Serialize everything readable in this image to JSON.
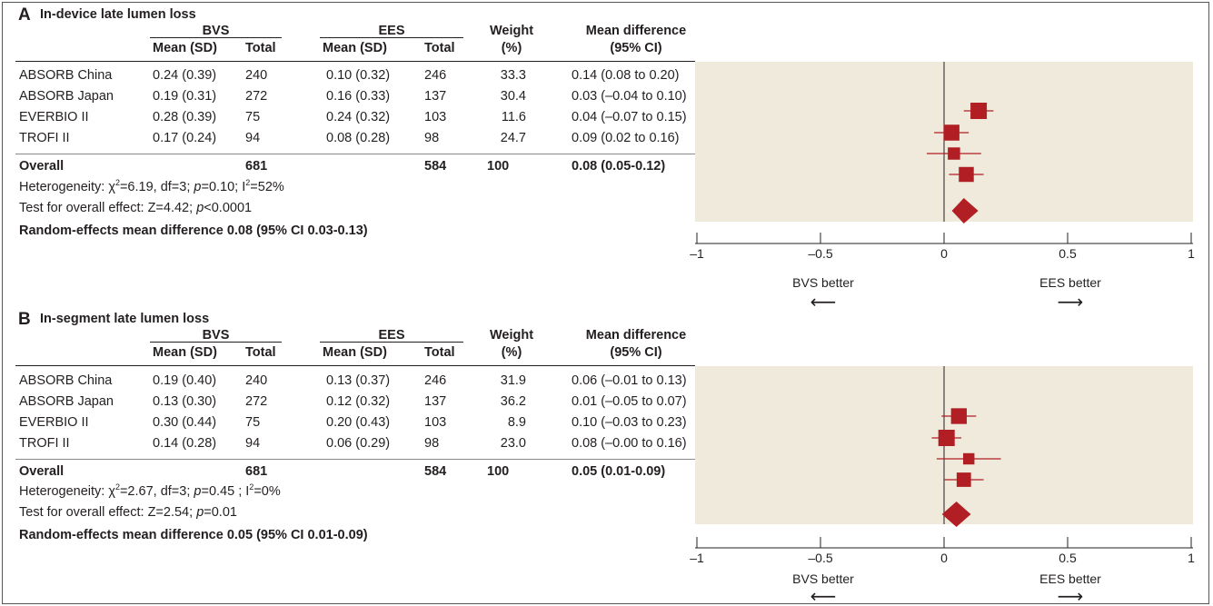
{
  "colors": {
    "plot_bg": "#efeadb",
    "marker": "#b11f24",
    "ink": "#231f20"
  },
  "columns": {
    "group1": "BVS",
    "group2": "EES",
    "mean_sd": "Mean (SD)",
    "total": "Total",
    "weight_l1": "Weight",
    "weight_l2": "(%)",
    "md_l1": "Mean difference",
    "md_l2": "(95% CI)"
  },
  "axis": {
    "ticks": [
      "–1",
      "–0.5",
      "0",
      "0.5",
      "1"
    ],
    "left_label": "BVS better",
    "right_label": "EES better",
    "left_arrow": "⟵",
    "right_arrow": "⟶"
  },
  "panels": [
    {
      "letter": "A",
      "title": "In-device late lumen loss",
      "rows": [
        {
          "study": "ABSORB China",
          "bvs_mean": "0.24 (0.39)",
          "bvs_total": "240",
          "ees_mean": "0.10 (0.32)",
          "ees_total": "246",
          "weight": "33.3",
          "md": "0.14 (0.08 to 0.20)"
        },
        {
          "study": "ABSORB Japan",
          "bvs_mean": "0.19 (0.31)",
          "bvs_total": "272",
          "ees_mean": "0.16 (0.33)",
          "ees_total": "137",
          "weight": "30.4",
          "md": "0.03 (–0.04 to 0.10)"
        },
        {
          "study": "EVERBIO II",
          "bvs_mean": "0.28 (0.39)",
          "bvs_total": "75",
          "ees_mean": "0.24 (0.32)",
          "ees_total": "103",
          "weight": "11.6",
          "md": "0.04 (–0.07 to 0.15)"
        },
        {
          "study": "TROFI II",
          "bvs_mean": "0.17 (0.24)",
          "bvs_total": "94",
          "ees_mean": "0.08 (0.28)",
          "ees_total": "98",
          "weight": "24.7",
          "md": "0.09 (0.02 to 0.16)"
        }
      ],
      "overall": {
        "label": "Overall",
        "bvs_total": "681",
        "ees_total": "584",
        "weight": "100",
        "md": "0.08 (0.05-0.12)"
      },
      "heterogeneity": {
        "prefix": "Heterogeneity: χ",
        "sup": "2",
        "mid": "=6.19, df=3; ",
        "p": "p",
        "p_value": "=0.10; I",
        "i2": "=52%"
      },
      "overall_effect": {
        "prefix": "Test for overall effect: Z=4.42; ",
        "p": "p",
        "p_value": "<0.0001"
      },
      "random_effects": "Random-effects mean difference 0.08 (95% CI 0.03-0.13)"
    },
    {
      "letter": "B",
      "title": "In-segment late lumen loss",
      "rows": [
        {
          "study": "ABSORB China",
          "bvs_mean": "0.19 (0.40)",
          "bvs_total": "240",
          "ees_mean": "0.13 (0.37)",
          "ees_total": "246",
          "weight": "31.9",
          "md": "0.06 (–0.01 to 0.13)"
        },
        {
          "study": "ABSORB Japan",
          "bvs_mean": "0.13 (0.30)",
          "bvs_total": "272",
          "ees_mean": "0.12 (0.32)",
          "ees_total": "137",
          "weight": "36.2",
          "md": "0.01 (–0.05 to 0.07)"
        },
        {
          "study": "EVERBIO II",
          "bvs_mean": "0.30 (0.44)",
          "bvs_total": "75",
          "ees_mean": "0.20 (0.43)",
          "ees_total": "103",
          "weight": "8.9",
          "md": "0.10 (–0.03 to 0.23)"
        },
        {
          "study": "TROFI II",
          "bvs_mean": "0.14 (0.28)",
          "bvs_total": "94",
          "ees_mean": "0.06 (0.29)",
          "ees_total": "98",
          "weight": "23.0",
          "md": "0.08 (–0.00 to 0.16)"
        }
      ],
      "overall": {
        "label": "Overall",
        "bvs_total": "681",
        "ees_total": "584",
        "weight": "100",
        "md": "0.05 (0.01-0.09)"
      },
      "heterogeneity": {
        "prefix": "Heterogeneity: χ",
        "sup": "2",
        "mid": "=2.67, df=3; ",
        "p": "p",
        "p_value": "=0.45 ; I",
        "i2": "=0%"
      },
      "overall_effect": {
        "prefix": "Test for overall effect: Z=2.54; ",
        "p": "p",
        "p_value": "=0.01"
      },
      "random_effects": "Random-effects mean difference 0.05 (95% CI 0.01-0.09)"
    }
  ],
  "chart_data": [
    {
      "type": "forest",
      "title": "In-device late lumen loss",
      "xlim": [
        -1,
        1
      ],
      "xticks": [
        -1,
        -0.5,
        0,
        0.5,
        1
      ],
      "studies": [
        {
          "name": "ABSORB China",
          "md": 0.14,
          "lo": 0.08,
          "hi": 0.2,
          "weight": 33.3
        },
        {
          "name": "ABSORB Japan",
          "md": 0.03,
          "lo": -0.04,
          "hi": 0.1,
          "weight": 30.4
        },
        {
          "name": "EVERBIO II",
          "md": 0.04,
          "lo": -0.07,
          "hi": 0.15,
          "weight": 11.6
        },
        {
          "name": "TROFI II",
          "md": 0.09,
          "lo": 0.02,
          "hi": 0.16,
          "weight": 24.7
        }
      ],
      "overall": {
        "md": 0.08,
        "lo": 0.05,
        "hi": 0.12
      }
    },
    {
      "type": "forest",
      "title": "In-segment late lumen loss",
      "xlim": [
        -1,
        1
      ],
      "xticks": [
        -1,
        -0.5,
        0,
        0.5,
        1
      ],
      "studies": [
        {
          "name": "ABSORB China",
          "md": 0.06,
          "lo": -0.01,
          "hi": 0.13,
          "weight": 31.9
        },
        {
          "name": "ABSORB Japan",
          "md": 0.01,
          "lo": -0.05,
          "hi": 0.07,
          "weight": 36.2
        },
        {
          "name": "EVERBIO II",
          "md": 0.1,
          "lo": -0.03,
          "hi": 0.23,
          "weight": 8.9
        },
        {
          "name": "TROFI II",
          "md": 0.08,
          "lo": -0.0,
          "hi": 0.16,
          "weight": 23.0
        }
      ],
      "overall": {
        "md": 0.05,
        "lo": 0.01,
        "hi": 0.09
      }
    }
  ]
}
